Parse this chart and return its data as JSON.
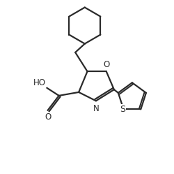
{
  "background_color": "#ffffff",
  "line_color": "#2a2a2a",
  "line_width": 1.6,
  "figsize": [
    2.51,
    2.49
  ],
  "dpi": 100,
  "xlim": [
    0,
    10
  ],
  "ylim": [
    0,
    10
  ]
}
